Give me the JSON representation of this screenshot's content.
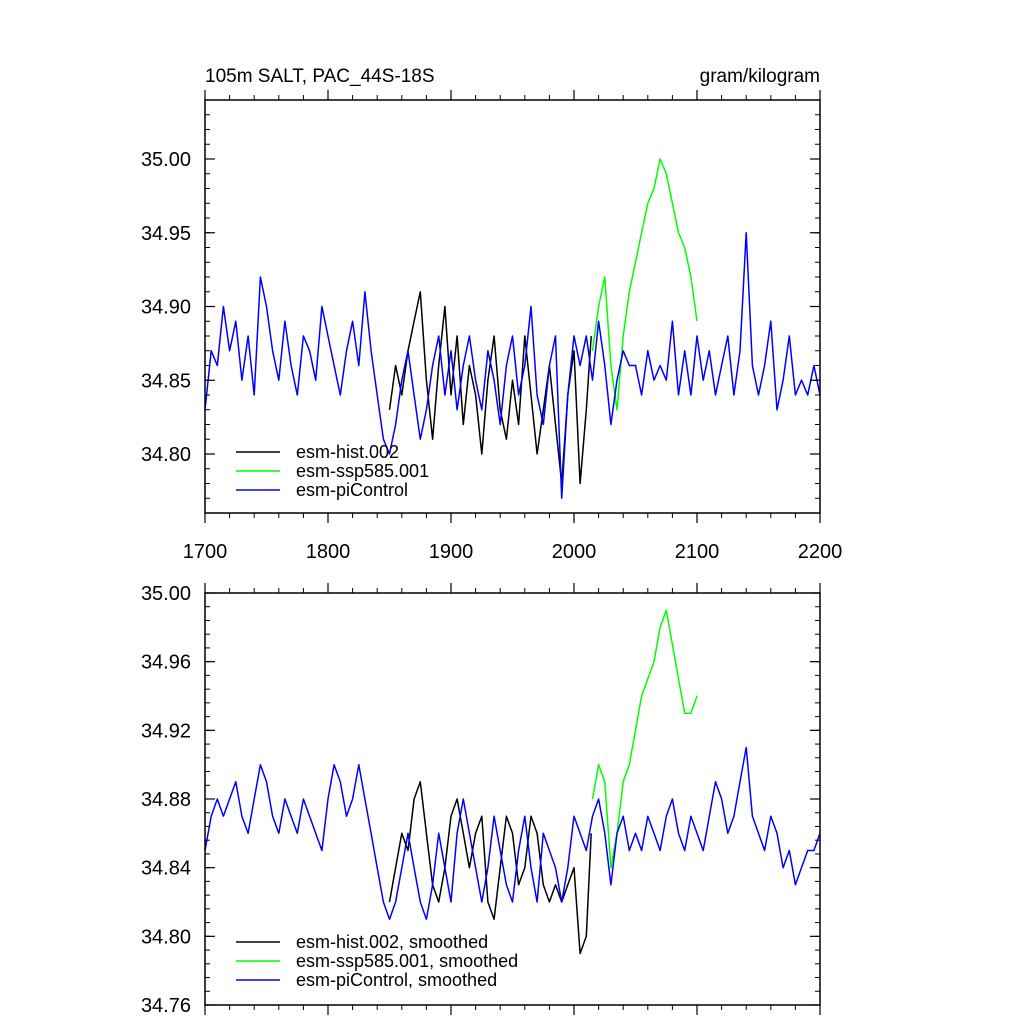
{
  "chart_data": [
    {
      "type": "line",
      "title": "105m SALT, PAC_44S-18S",
      "units": "gram/kilogram",
      "xlim": [
        1700,
        2200
      ],
      "ylim": [
        34.76,
        35.04
      ],
      "x_ticks": [
        1700,
        1800,
        1900,
        2000,
        2100,
        2200
      ],
      "x_tick_labels": [
        "1700",
        "1800",
        "1900",
        "2000",
        "2100",
        "2200"
      ],
      "y_ticks": [
        34.8,
        34.85,
        34.9,
        34.95,
        35.0
      ],
      "y_tick_labels": [
        "34.80",
        "34.85",
        "34.90",
        "34.95",
        "35.00"
      ],
      "legend_position": "bottom-left",
      "series": [
        {
          "name": "esm-hist.002",
          "color": "#000000",
          "x": [
            1850,
            1855,
            1860,
            1865,
            1870,
            1875,
            1880,
            1885,
            1890,
            1895,
            1900,
            1905,
            1910,
            1915,
            1920,
            1925,
            1930,
            1935,
            1940,
            1945,
            1950,
            1955,
            1960,
            1965,
            1970,
            1975,
            1980,
            1985,
            1990,
            1995,
            2000,
            2005,
            2010,
            2014
          ],
          "values": [
            34.83,
            34.86,
            34.84,
            34.87,
            34.89,
            34.91,
            34.85,
            34.81,
            34.86,
            34.9,
            34.84,
            34.88,
            34.82,
            34.86,
            34.84,
            34.8,
            34.85,
            34.88,
            34.83,
            34.81,
            34.85,
            34.82,
            34.88,
            34.84,
            34.8,
            34.83,
            34.86,
            34.82,
            34.78,
            34.84,
            34.87,
            34.78,
            34.83,
            34.88
          ]
        },
        {
          "name": "esm-ssp585.001",
          "color": "#00ff00",
          "x": [
            2015,
            2020,
            2025,
            2030,
            2035,
            2040,
            2045,
            2050,
            2055,
            2060,
            2065,
            2070,
            2075,
            2080,
            2085,
            2090,
            2095,
            2100
          ],
          "values": [
            34.87,
            34.9,
            34.92,
            34.86,
            34.83,
            34.88,
            34.91,
            34.93,
            34.95,
            34.97,
            34.98,
            35.0,
            34.99,
            34.97,
            34.95,
            34.94,
            34.92,
            34.89
          ]
        },
        {
          "name": "esm-piControl",
          "color": "#0000ff",
          "x": [
            1700,
            1705,
            1710,
            1715,
            1720,
            1725,
            1730,
            1735,
            1740,
            1745,
            1750,
            1755,
            1760,
            1765,
            1770,
            1775,
            1780,
            1785,
            1790,
            1795,
            1800,
            1805,
            1810,
            1815,
            1820,
            1825,
            1830,
            1835,
            1840,
            1845,
            1850,
            1855,
            1860,
            1865,
            1870,
            1875,
            1880,
            1885,
            1890,
            1895,
            1900,
            1905,
            1910,
            1915,
            1920,
            1925,
            1930,
            1935,
            1940,
            1945,
            1950,
            1955,
            1960,
            1965,
            1970,
            1975,
            1980,
            1985,
            1990,
            1995,
            2000,
            2005,
            2010,
            2015,
            2020,
            2025,
            2030,
            2035,
            2040,
            2045,
            2050,
            2055,
            2060,
            2065,
            2070,
            2075,
            2080,
            2085,
            2090,
            2095,
            2100,
            2105,
            2110,
            2115,
            2120,
            2125,
            2130,
            2135,
            2140,
            2145,
            2150,
            2155,
            2160,
            2165,
            2170,
            2175,
            2180,
            2185,
            2190,
            2195,
            2200
          ],
          "values": [
            34.83,
            34.87,
            34.86,
            34.9,
            34.87,
            34.89,
            34.85,
            34.88,
            34.84,
            34.92,
            34.9,
            34.87,
            34.85,
            34.89,
            34.86,
            34.84,
            34.88,
            34.87,
            34.85,
            34.9,
            34.88,
            34.86,
            34.84,
            34.87,
            34.89,
            34.86,
            34.91,
            34.87,
            34.84,
            34.81,
            34.8,
            34.82,
            34.85,
            34.87,
            34.84,
            34.81,
            34.83,
            34.86,
            34.88,
            34.84,
            34.87,
            34.83,
            34.86,
            34.88,
            34.85,
            34.83,
            34.87,
            34.85,
            34.82,
            34.86,
            34.88,
            34.84,
            34.86,
            34.9,
            34.84,
            34.82,
            34.86,
            34.88,
            34.77,
            34.84,
            34.88,
            34.86,
            34.88,
            34.85,
            34.89,
            34.86,
            34.82,
            34.85,
            34.87,
            34.86,
            34.86,
            34.84,
            34.87,
            34.85,
            34.86,
            34.85,
            34.89,
            34.84,
            34.87,
            34.84,
            34.88,
            34.85,
            34.87,
            34.84,
            34.86,
            34.88,
            34.84,
            34.87,
            34.95,
            34.86,
            34.84,
            34.86,
            34.89,
            34.83,
            34.85,
            34.88,
            34.84,
            34.85,
            34.84,
            34.86,
            34.84
          ]
        }
      ]
    },
    {
      "type": "line",
      "title": "",
      "xlim": [
        1700,
        2200
      ],
      "ylim": [
        34.76,
        35.0
      ],
      "x_ticks": [
        1700,
        1800,
        1900,
        2000,
        2100,
        2200
      ],
      "y_ticks": [
        34.76,
        34.8,
        34.84,
        34.88,
        34.92,
        34.96,
        35.0
      ],
      "y_tick_labels": [
        "34.76",
        "34.80",
        "34.84",
        "34.88",
        "34.92",
        "34.96",
        "35.00"
      ],
      "legend_position": "bottom-left",
      "series": [
        {
          "name": "esm-hist.002, smoothed",
          "color": "#000000",
          "x": [
            1850,
            1855,
            1860,
            1865,
            1870,
            1875,
            1880,
            1885,
            1890,
            1895,
            1900,
            1905,
            1910,
            1915,
            1920,
            1925,
            1930,
            1935,
            1940,
            1945,
            1950,
            1955,
            1960,
            1965,
            1970,
            1975,
            1980,
            1985,
            1990,
            1995,
            2000,
            2005,
            2010,
            2014
          ],
          "values": [
            34.82,
            34.84,
            34.86,
            34.85,
            34.88,
            34.89,
            34.86,
            34.83,
            34.82,
            34.84,
            34.87,
            34.88,
            34.86,
            34.84,
            34.86,
            34.87,
            34.82,
            34.81,
            34.84,
            34.87,
            34.86,
            34.83,
            34.84,
            34.87,
            34.86,
            34.83,
            34.82,
            34.83,
            34.82,
            34.83,
            34.84,
            34.79,
            34.8,
            34.86
          ]
        },
        {
          "name": "esm-ssp585.001, smoothed",
          "color": "#00ff00",
          "x": [
            2015,
            2020,
            2025,
            2030,
            2035,
            2040,
            2045,
            2050,
            2055,
            2060,
            2065,
            2070,
            2075,
            2080,
            2085,
            2090,
            2095,
            2100
          ],
          "values": [
            34.88,
            34.9,
            34.89,
            34.84,
            34.86,
            34.89,
            34.9,
            34.92,
            34.94,
            34.95,
            34.96,
            34.98,
            34.99,
            34.97,
            34.95,
            34.93,
            34.93,
            34.94
          ]
        },
        {
          "name": "esm-piControl, smoothed",
          "color": "#0000ff",
          "x": [
            1700,
            1705,
            1710,
            1715,
            1720,
            1725,
            1730,
            1735,
            1740,
            1745,
            1750,
            1755,
            1760,
            1765,
            1770,
            1775,
            1780,
            1785,
            1790,
            1795,
            1800,
            1805,
            1810,
            1815,
            1820,
            1825,
            1830,
            1835,
            1840,
            1845,
            1850,
            1855,
            1860,
            1865,
            1870,
            1875,
            1880,
            1885,
            1890,
            1895,
            1900,
            1905,
            1910,
            1915,
            1920,
            1925,
            1930,
            1935,
            1940,
            1945,
            1950,
            1955,
            1960,
            1965,
            1970,
            1975,
            1980,
            1985,
            1990,
            1995,
            2000,
            2005,
            2010,
            2015,
            2020,
            2025,
            2030,
            2035,
            2040,
            2045,
            2050,
            2055,
            2060,
            2065,
            2070,
            2075,
            2080,
            2085,
            2090,
            2095,
            2100,
            2105,
            2110,
            2115,
            2120,
            2125,
            2130,
            2135,
            2140,
            2145,
            2150,
            2155,
            2160,
            2165,
            2170,
            2175,
            2180,
            2185,
            2190,
            2195,
            2200
          ],
          "values": [
            34.85,
            34.87,
            34.88,
            34.87,
            34.88,
            34.89,
            34.87,
            34.86,
            34.88,
            34.9,
            34.89,
            34.87,
            34.86,
            34.88,
            34.87,
            34.86,
            34.88,
            34.87,
            34.86,
            34.85,
            34.88,
            34.9,
            34.89,
            34.87,
            34.88,
            34.9,
            34.88,
            34.86,
            34.84,
            34.82,
            34.81,
            34.82,
            34.84,
            34.86,
            34.84,
            34.82,
            34.81,
            34.83,
            34.86,
            34.84,
            34.82,
            34.86,
            34.88,
            34.86,
            34.84,
            34.82,
            34.84,
            34.87,
            34.85,
            34.83,
            34.82,
            34.85,
            34.87,
            34.84,
            34.82,
            34.86,
            34.85,
            34.84,
            34.82,
            34.84,
            34.87,
            34.86,
            34.85,
            34.87,
            34.88,
            34.86,
            34.83,
            34.86,
            34.87,
            34.85,
            34.86,
            34.85,
            34.87,
            34.86,
            34.85,
            34.87,
            34.88,
            34.86,
            34.85,
            34.87,
            34.86,
            34.85,
            34.87,
            34.89,
            34.88,
            34.86,
            34.87,
            34.89,
            34.91,
            34.87,
            34.86,
            34.85,
            34.87,
            34.86,
            34.84,
            34.85,
            34.83,
            34.84,
            34.85,
            34.85,
            34.86
          ]
        }
      ]
    }
  ]
}
